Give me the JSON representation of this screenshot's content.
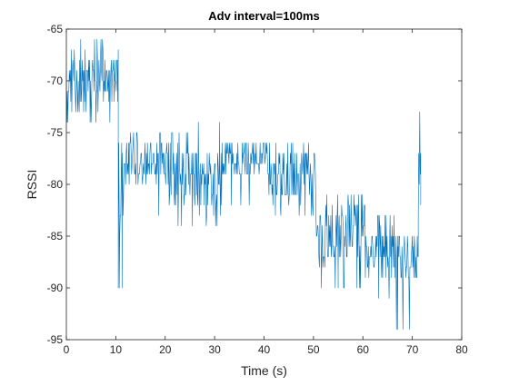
{
  "chart_data": {
    "type": "line",
    "title": "Adv interval=100ms",
    "xlabel": "Time (s)",
    "ylabel": "RSSI",
    "xlim": [
      0,
      80
    ],
    "ylim": [
      -95,
      -65
    ],
    "xticks": [
      0,
      10,
      20,
      30,
      40,
      50,
      60,
      70,
      80
    ],
    "yticks": [
      -65,
      -70,
      -75,
      -80,
      -85,
      -90,
      -95
    ],
    "grid": false,
    "legend": "none",
    "line_color": "#0072BD",
    "series": [
      {
        "segments": [
          {
            "x_start": 0,
            "x_end": 10.5,
            "base": -70,
            "spread": 2.8,
            "min": -74,
            "max": -66
          },
          {
            "x_start": 10.5,
            "x_end": 11.3,
            "base": -82,
            "spread": 5,
            "min": -90,
            "max": -76
          },
          {
            "x_start": 11.3,
            "x_end": 20.5,
            "base": -78,
            "spread": 2.2,
            "min": -83,
            "max": -75
          },
          {
            "x_start": 20.5,
            "x_end": 26.5,
            "base": -79,
            "spread": 2.8,
            "min": -84,
            "max": -75
          },
          {
            "x_start": 26.5,
            "x_end": 31.5,
            "base": -80,
            "spread": 3,
            "min": -84,
            "max": -74
          },
          {
            "x_start": 31.5,
            "x_end": 41.0,
            "base": -77.5,
            "spread": 1.8,
            "min": -82,
            "max": -76
          },
          {
            "x_start": 41.0,
            "x_end": 50.5,
            "base": -79,
            "spread": 2.8,
            "min": -83,
            "max": -76
          },
          {
            "x_start": 50.5,
            "x_end": 55.5,
            "base": -85,
            "spread": 3,
            "min": -90,
            "max": -81
          },
          {
            "x_start": 55.5,
            "x_end": 60.5,
            "base": -84,
            "spread": 3.2,
            "min": -90,
            "max": -77
          },
          {
            "x_start": 60.5,
            "x_end": 66.5,
            "base": -86.5,
            "spread": 2.5,
            "min": -91,
            "max": -83
          },
          {
            "x_start": 66.5,
            "x_end": 71.2,
            "base": -87,
            "spread": 2.5,
            "min": -94,
            "max": -83
          },
          {
            "x_start": 71.2,
            "x_end": 71.7,
            "base": -79,
            "spread": 4,
            "min": -85,
            "max": -73
          }
        ],
        "anchor_points": [
          {
            "x": 6.2,
            "y": -66
          },
          {
            "x": 10.7,
            "y": -90
          },
          {
            "x": 31.0,
            "y": -74
          },
          {
            "x": 55.0,
            "y": -90
          },
          {
            "x": 67.0,
            "y": -94
          },
          {
            "x": 71.5,
            "y": -73
          },
          {
            "x": 71.7,
            "y": -82
          }
        ]
      }
    ]
  }
}
